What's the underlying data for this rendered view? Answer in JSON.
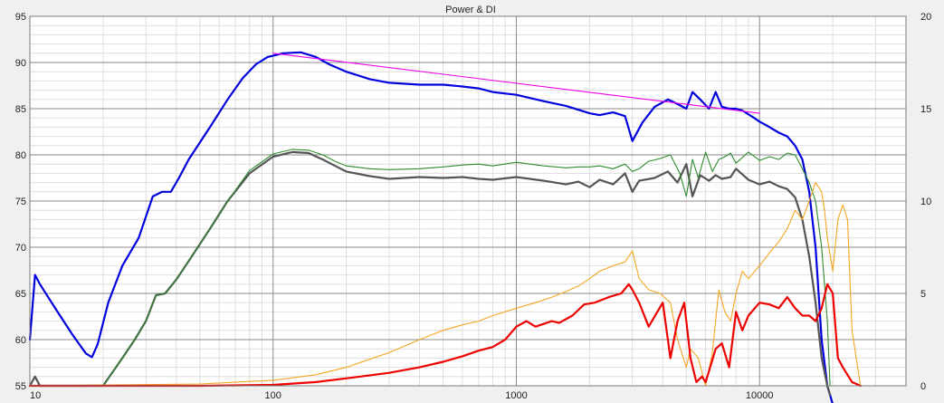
{
  "chart_data": {
    "type": "line",
    "title": "Power & DI",
    "x_scale": "log",
    "xlim": [
      10,
      40000
    ],
    "ylim": [
      55,
      95
    ],
    "y2lim": [
      0,
      20
    ],
    "x_ticks": [
      "10",
      "100",
      "1000",
      "10000"
    ],
    "y_ticks": [
      "55",
      "60",
      "65",
      "70",
      "75",
      "80",
      "85",
      "90",
      "95"
    ],
    "y2_ticks": [
      "0",
      "5",
      "10",
      "15",
      "20"
    ],
    "grid": true,
    "legend": "none",
    "series": [
      {
        "color": "#0000dd",
        "width": 2.2,
        "axis": "left",
        "x": [
          10,
          10.5,
          11,
          13,
          15,
          17,
          18,
          19,
          21,
          24,
          28,
          32,
          35,
          38,
          41,
          45,
          55,
          65,
          75,
          85,
          95,
          110,
          130,
          150,
          170,
          200,
          250,
          300,
          400,
          500,
          600,
          700,
          800,
          1000,
          1300,
          1600,
          2000,
          2200,
          2500,
          2800,
          3000,
          3300,
          3700,
          4200,
          4600,
          5000,
          5300,
          5700,
          6200,
          6600,
          7000,
          7500,
          8000,
          8500,
          9500,
          10000,
          11000,
          12000,
          13000,
          14000,
          15000,
          16000,
          17000,
          18000,
          19000,
          19500,
          20000
        ],
        "y": [
          60,
          67,
          66,
          63,
          60.5,
          58.5,
          58.1,
          59.5,
          64,
          68,
          71,
          75.5,
          76,
          76,
          77.5,
          79.5,
          83,
          86,
          88.3,
          89.8,
          90.6,
          91,
          91.1,
          90.6,
          89.8,
          89,
          88.2,
          87.8,
          87.6,
          87.6,
          87.4,
          87.2,
          86.8,
          86.5,
          85.8,
          85.3,
          84.5,
          84.3,
          84.6,
          84.2,
          81.5,
          83.5,
          85.2,
          86,
          85.5,
          85,
          86.8,
          86,
          85,
          86.8,
          85.2,
          85,
          85,
          84.8,
          84,
          83.6,
          83,
          82.4,
          82,
          81,
          79.5,
          76,
          70,
          60,
          55,
          54,
          53
        ]
      },
      {
        "color": "#555555",
        "width": 2.2,
        "axis": "left",
        "x": [
          10,
          10.5,
          11,
          20,
          24,
          27,
          30,
          33,
          36,
          40,
          45,
          55,
          65,
          80,
          100,
          120,
          140,
          160,
          180,
          200,
          250,
          300,
          400,
          500,
          600,
          700,
          800,
          1000,
          1300,
          1600,
          1800,
          2000,
          2200,
          2500,
          2800,
          3000,
          3200,
          3700,
          4200,
          4600,
          5000,
          5300,
          5700,
          6200,
          6600,
          7000,
          7600,
          8000,
          9000,
          10000,
          11000,
          12000,
          13000,
          14000,
          15000,
          16000,
          17000,
          18000,
          19000,
          19500
        ],
        "y": [
          55,
          56,
          55,
          55,
          58,
          60,
          62,
          64.8,
          65,
          66.5,
          68.5,
          72,
          75,
          78,
          79.8,
          80.3,
          80.2,
          79.5,
          78.8,
          78.2,
          77.7,
          77.4,
          77.6,
          77.5,
          77.6,
          77.4,
          77.3,
          77.6,
          77.2,
          76.8,
          77.1,
          76.5,
          77.3,
          76.8,
          78,
          76,
          77.2,
          77.5,
          78.2,
          77,
          79,
          75.5,
          77.8,
          77.2,
          77.8,
          77.4,
          77.6,
          78.5,
          77.3,
          76.8,
          77.1,
          76.6,
          76.3,
          75.4,
          73,
          69,
          64,
          58,
          55,
          54
        ]
      },
      {
        "color": "#2e8b2e",
        "width": 1.1,
        "axis": "left",
        "x": [
          10,
          20,
          24,
          27,
          30,
          33,
          36,
          40,
          45,
          55,
          65,
          80,
          100,
          120,
          140,
          160,
          180,
          200,
          250,
          300,
          400,
          500,
          600,
          700,
          800,
          1000,
          1300,
          1600,
          1800,
          2000,
          2200,
          2500,
          2800,
          3000,
          3200,
          3500,
          3900,
          4300,
          4700,
          5000,
          5300,
          5600,
          6000,
          6400,
          6800,
          7200,
          7600,
          8000,
          9000,
          10000,
          11000,
          12000,
          13000,
          14000,
          15000,
          16000,
          17000,
          18000,
          19000,
          19500
        ],
        "y": [
          55,
          55,
          58,
          60,
          62,
          64.8,
          65,
          66.5,
          68.5,
          72,
          75,
          78.3,
          80.1,
          80.6,
          80.5,
          80,
          79.3,
          78.8,
          78.5,
          78.4,
          78.5,
          78.7,
          78.9,
          79,
          78.8,
          79.2,
          78.8,
          78.6,
          78.7,
          78.7,
          78.8,
          78.5,
          79,
          78.2,
          78.5,
          79.3,
          79.6,
          80,
          78,
          75.5,
          79.5,
          77.5,
          80.3,
          78.2,
          79.5,
          79.8,
          80.2,
          79.1,
          80.3,
          79.4,
          79.8,
          79.5,
          80.2,
          80,
          78.5,
          77,
          75,
          70,
          62,
          55
        ]
      },
      {
        "color": "#f5a623",
        "width": 1.1,
        "axis": "right",
        "x": [
          10,
          50,
          100,
          150,
          200,
          300,
          400,
          500,
          600,
          700,
          800,
          1000,
          1200,
          1400,
          1600,
          1800,
          2000,
          2200,
          2500,
          2800,
          3000,
          3200,
          3500,
          3900,
          4300,
          4600,
          5000,
          5200,
          5600,
          6000,
          6400,
          6800,
          7200,
          7600,
          8000,
          8500,
          9000,
          10000,
          11000,
          12000,
          13000,
          14000,
          15000,
          16000,
          17000,
          18000,
          18500,
          19000,
          20000,
          21000,
          22000,
          23000,
          24000,
          26000
        ],
        "y": [
          0,
          0.1,
          0.3,
          0.6,
          1,
          1.8,
          2.5,
          3,
          3.3,
          3.5,
          3.8,
          4.2,
          4.5,
          4.8,
          5.1,
          5.4,
          5.8,
          6.2,
          6.5,
          6.7,
          7.3,
          5.8,
          5.2,
          5,
          4.5,
          2.5,
          1,
          2,
          1.5,
          0,
          1.8,
          5.2,
          4,
          3.5,
          5,
          6.2,
          5.8,
          6.5,
          7.2,
          7.8,
          8.5,
          9.5,
          9,
          10,
          11,
          10.5,
          9.5,
          8,
          6.2,
          9,
          9.8,
          9,
          3,
          0
        ]
      },
      {
        "color": "#ee0000",
        "width": 2.2,
        "axis": "right",
        "x": [
          10,
          50,
          100,
          150,
          200,
          300,
          400,
          500,
          600,
          700,
          800,
          900,
          1000,
          1100,
          1200,
          1400,
          1500,
          1700,
          1900,
          2100,
          2400,
          2700,
          2900,
          3000,
          3200,
          3500,
          4000,
          4300,
          4600,
          4900,
          5200,
          5500,
          5800,
          6000,
          6200,
          6600,
          7000,
          7500,
          8000,
          8500,
          9000,
          10000,
          11000,
          12000,
          13000,
          14000,
          15000,
          16000,
          17000,
          18000,
          19000,
          20000,
          21000,
          22000,
          24000,
          26000
        ],
        "y": [
          0,
          0,
          0.05,
          0.2,
          0.4,
          0.7,
          1,
          1.3,
          1.6,
          1.9,
          2.1,
          2.5,
          3.2,
          3.5,
          3.2,
          3.5,
          3.4,
          3.8,
          4.4,
          4.5,
          4.8,
          5,
          5.5,
          5.2,
          4.5,
          3.2,
          4.5,
          1.5,
          3.5,
          4.5,
          1.5,
          0.2,
          0.5,
          0.2,
          0.8,
          2,
          2.3,
          1,
          4,
          3,
          3.8,
          4.5,
          4.4,
          4.2,
          4.8,
          4.2,
          3.8,
          3.8,
          3.5,
          4.2,
          5.5,
          5,
          1.5,
          1,
          0.2,
          0
        ]
      },
      {
        "color": "#ee00ee",
        "width": 1.1,
        "axis": "left",
        "x": [
          100,
          10000
        ],
        "y": [
          91,
          84.5
        ]
      }
    ]
  }
}
